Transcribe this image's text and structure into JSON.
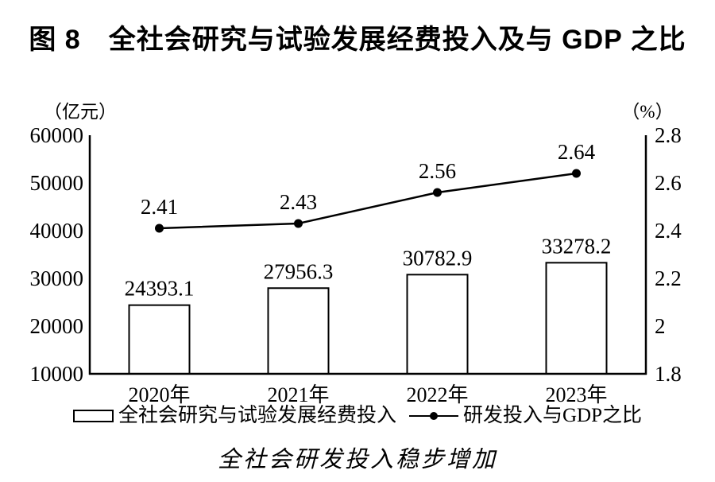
{
  "title": "图 8　全社会研究与试验发展经费投入及与 GDP 之比",
  "caption": "全社会研发投入稳步增加",
  "chart_data": {
    "type": "combo",
    "title": "图 8　全社会研究与试验发展经费投入及与 GDP 之比",
    "subtitle": "全社会研发投入稳步增加",
    "categories": [
      "2020年",
      "2021年",
      "2022年",
      "2023年"
    ],
    "series": [
      {
        "name": "全社会研究与试验发展经费投入",
        "type": "bar",
        "axis": "left",
        "values": [
          24393.1,
          27956.3,
          30782.9,
          33278.2
        ],
        "labels": [
          "24393.1",
          "27956.3",
          "30782.9",
          "33278.2"
        ]
      },
      {
        "name": "研发投入与GDP之比",
        "type": "line",
        "axis": "right",
        "values": [
          2.41,
          2.43,
          2.56,
          2.64
        ],
        "labels": [
          "2.41",
          "2.43",
          "2.56",
          "2.64"
        ]
      }
    ],
    "left_axis": {
      "unit": "（亿元）",
      "min": 10000,
      "max": 60000,
      "tick_step": 10000,
      "tick_labels": [
        "60000",
        "50000",
        "40000",
        "30000",
        "20000",
        "10000"
      ]
    },
    "right_axis": {
      "unit": "（%）",
      "min": 1.8,
      "max": 2.8,
      "tick_step": 0.2,
      "tick_labels": [
        "2.8",
        "2.6",
        "2.4",
        "2.2",
        "2",
        "1.8"
      ]
    },
    "grid": false,
    "legend_position": "bottom",
    "colors": {
      "background": "#ffffff",
      "bar_fill": "#ffffff",
      "bar_border": "#000000",
      "line": "#000000",
      "text": "#000000"
    }
  }
}
